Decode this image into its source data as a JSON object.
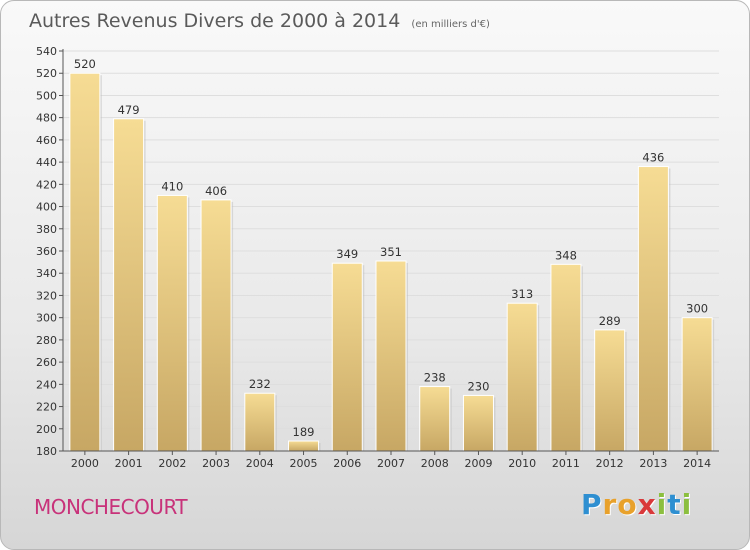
{
  "chart_data": {
    "type": "bar",
    "title": "Autres Revenus Divers de 2000 à 2014",
    "subtitle": "(en milliers d'€)",
    "categories": [
      "2000",
      "2001",
      "2002",
      "2003",
      "2004",
      "2005",
      "2006",
      "2007",
      "2008",
      "2009",
      "2010",
      "2011",
      "2012",
      "2013",
      "2014"
    ],
    "values": [
      520,
      479,
      410,
      406,
      232,
      189,
      349,
      351,
      238,
      230,
      313,
      348,
      289,
      436,
      300
    ],
    "ylim": [
      180,
      540
    ],
    "yticks": [
      180,
      200,
      220,
      240,
      260,
      280,
      300,
      320,
      340,
      360,
      380,
      400,
      420,
      440,
      460,
      480,
      500,
      520,
      540
    ],
    "grid": true,
    "bar_color": "#e8cc82"
  },
  "place_name": "MONCHECOURT",
  "logo": {
    "letters": [
      "P",
      "r",
      "o",
      "x",
      "i",
      "t",
      "i"
    ],
    "colors": [
      "#2e8fd1",
      "#e8a12b",
      "#e8a12b",
      "#d9383a",
      "#8cbf3f",
      "#2e8fd1",
      "#8cbf3f"
    ]
  }
}
